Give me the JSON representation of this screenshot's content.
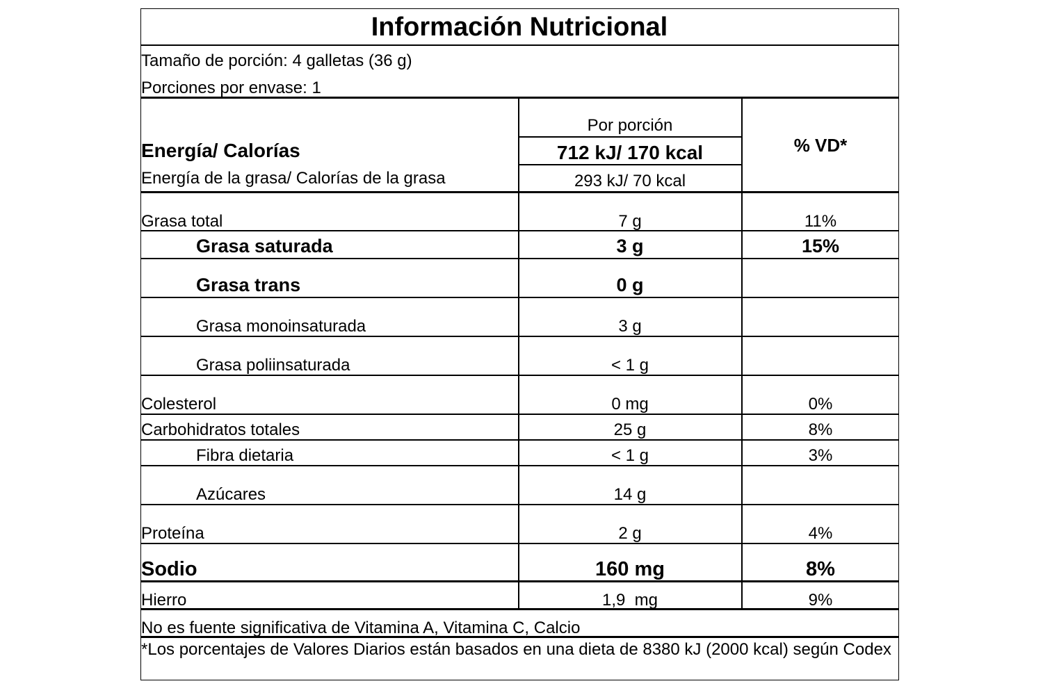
{
  "title": "Información Nutricional",
  "serving_size": "Tamaño de porción: 4 galletas (36 g)",
  "servings_per_container": "Porciones por envase: 1",
  "header": {
    "per_serving": "Por porción",
    "dv": "% VD*"
  },
  "energy": {
    "label": "Energía/ Calorías",
    "value": "712 kJ/ 170 kcal",
    "fat_label": "Energía de la grasa/ Calorías de la grasa",
    "fat_value": "293 kJ/ 70 kcal"
  },
  "rows": [
    {
      "name": "Grasa total",
      "amount": "7 g",
      "dv": "11%"
    },
    {
      "name": "Grasa saturada",
      "amount": "3 g",
      "dv": "15%"
    },
    {
      "name": "Grasa trans",
      "amount": "0 g",
      "dv": ""
    },
    {
      "name": "Grasa monoinsaturada",
      "amount": "3 g",
      "dv": ""
    },
    {
      "name": "Grasa poliinsaturada",
      "amount": "< 1 g",
      "dv": ""
    },
    {
      "name": "Colesterol",
      "amount": "0 mg",
      "dv": "0%"
    },
    {
      "name": "Carbohidratos totales",
      "amount": "25 g",
      "dv": "8%"
    },
    {
      "name": "Fibra dietaria",
      "amount": "< 1 g",
      "dv": "3%"
    },
    {
      "name": "Azúcares",
      "amount": "14 g",
      "dv": ""
    },
    {
      "name": "Proteína",
      "amount": "2 g",
      "dv": "4%"
    },
    {
      "name": "Sodio",
      "amount": "160 mg",
      "dv": "8%"
    },
    {
      "name": "Hierro",
      "amount": "1,9  mg",
      "dv": "9%"
    }
  ],
  "footnote_nonsignificant": "No es fuente significativa de Vitamina A, Vitamina C, Calcio",
  "footnote_dv": "*Los porcentajes de Valores Diarios están basados en una dieta de 8380 kJ (2000 kcal) según Codex"
}
